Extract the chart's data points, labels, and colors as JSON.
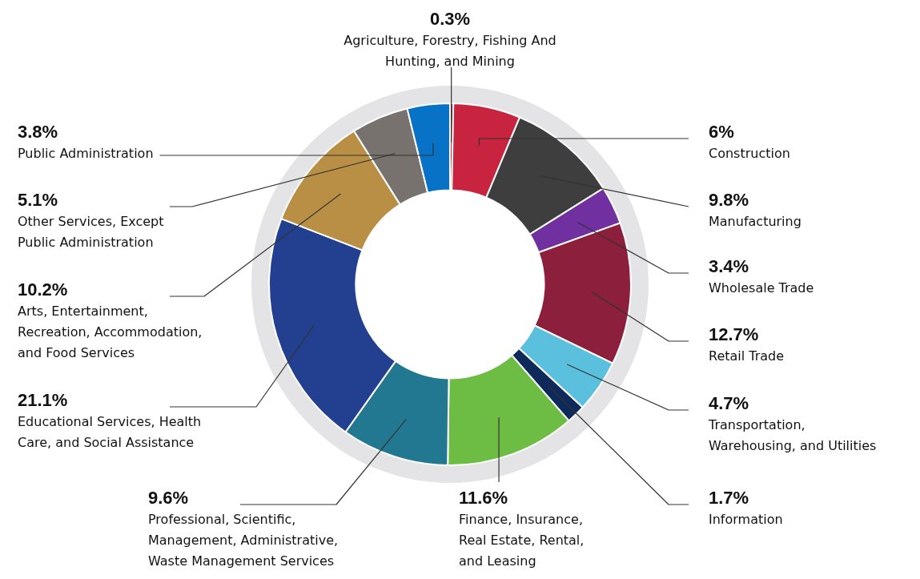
{
  "chart_data": {
    "type": "donut",
    "categories": [
      "Agriculture, Forestry, Fishing And Hunting, and Mining",
      "Construction",
      "Manufacturing",
      "Wholesale Trade",
      "Retail Trade",
      "Transportation, Warehousing, and Utilities",
      "Information",
      "Finance, Insurance, Real Estate, Rental, and Leasing",
      "Professional, Scientific, Management, Administrative, Waste Management Services",
      "Educational Services, Health Care, and Social Assistance",
      "Arts, Entertainment, Recreation, Accommodation, and Food Services",
      "Other Services, Except Public Administration",
      "Public Administration"
    ],
    "values": [
      0.3,
      6,
      9.8,
      3.4,
      12.7,
      4.7,
      1.7,
      11.6,
      9.6,
      21.1,
      10.2,
      5.1,
      3.8
    ],
    "colors": [
      "#e0202a",
      "#c8233f",
      "#3e3e3e",
      "#7030a0",
      "#8c1f3c",
      "#5bc0de",
      "#0d2a5a",
      "#6dbd45",
      "#237891",
      "#233f8f",
      "#b98f45",
      "#78726f",
      "#0872c6"
    ],
    "value_labels": [
      "0.3%",
      "6%",
      "9.8%",
      "3.4%",
      "12.7%",
      "4.7%",
      "1.7%",
      "11.6%",
      "9.6%",
      "21.1%",
      "10.2%",
      "5.1%",
      "3.8%"
    ],
    "legend": false
  }
}
